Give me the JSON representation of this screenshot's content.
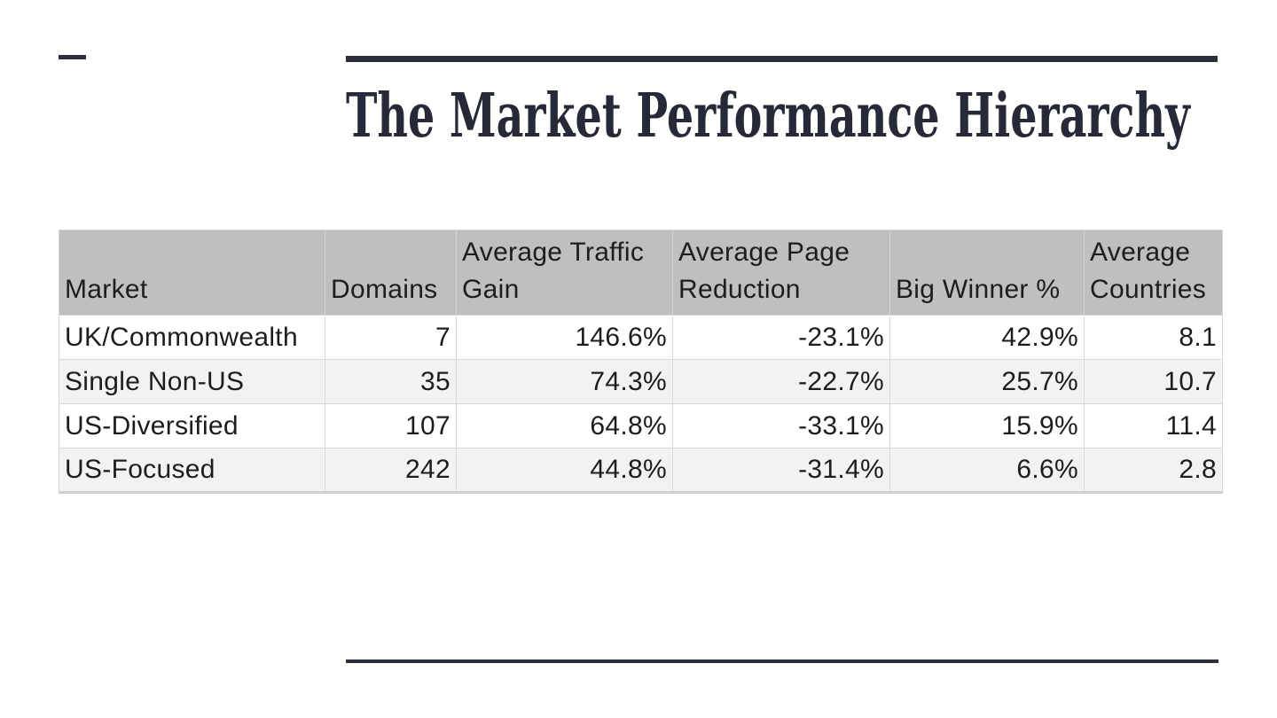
{
  "slide": {
    "title": "The Market Performance Hierarchy",
    "accent_color": "#2b2e3d",
    "title_color": "#252938"
  },
  "table": {
    "header_bg_color": "#bfbfbf",
    "alt_row_color": "#f2f2f2",
    "border_color": "#d9d9d9",
    "columns": [
      {
        "key": "market",
        "label": "Market",
        "align": "left"
      },
      {
        "key": "domains",
        "label": "Domains",
        "align": "right"
      },
      {
        "key": "avg-traffic-gain",
        "label": "Average Traffic Gain",
        "align": "right"
      },
      {
        "key": "avg-page-reduction",
        "label": "Average Page Reduction",
        "align": "right"
      },
      {
        "key": "big-winner-pct",
        "label": "Big Winner %",
        "align": "right"
      },
      {
        "key": "avg-countries",
        "label": "Average Countries",
        "align": "right"
      }
    ],
    "rows": [
      [
        "UK/Commonwealth",
        "7",
        "146.6%",
        "-23.1%",
        "42.9%",
        "8.1"
      ],
      [
        "Single Non-US",
        "35",
        "74.3%",
        "-22.7%",
        "25.7%",
        "10.7"
      ],
      [
        "US-Diversified",
        "107",
        "64.8%",
        "-33.1%",
        "15.9%",
        "11.4"
      ],
      [
        "US-Focused",
        "242",
        "44.8%",
        "-31.4%",
        "6.6%",
        "2.8"
      ]
    ]
  }
}
